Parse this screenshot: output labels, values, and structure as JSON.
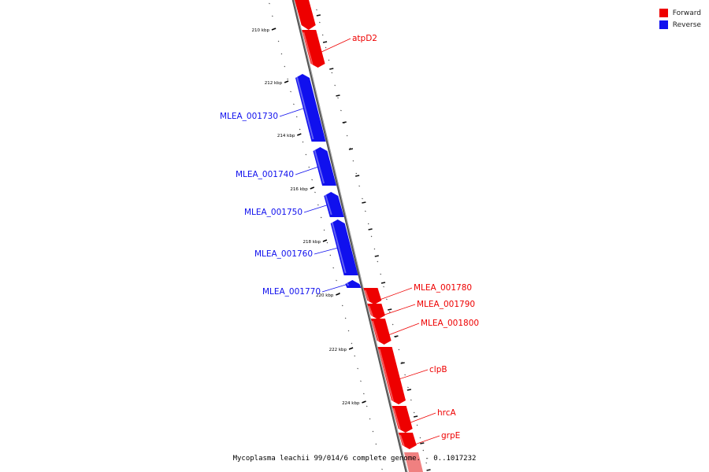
{
  "colors": {
    "forward": "#ee0000",
    "reverse": "#1010ee",
    "forward_light": "#f08080",
    "backbone": "#888888"
  },
  "legend": [
    {
      "label": "Forward",
      "color": "#ee0000"
    },
    {
      "label": "Reverse",
      "color": "#1010ee"
    }
  ],
  "caption": "Mycoplasma leachii 99/014/6 complete genome. - 0..1017232",
  "ruler_labels": [
    "210 kbp",
    "212 kbp",
    "214 kbp",
    "216 kbp",
    "218 kbp",
    "220 kbp",
    "222 kbp",
    "224 kbp"
  ],
  "genes": [
    {
      "label": "atpD2",
      "strand": "forward"
    },
    {
      "label": "MLEA_001730",
      "strand": "reverse"
    },
    {
      "label": "MLEA_001740",
      "strand": "reverse"
    },
    {
      "label": "MLEA_001750",
      "strand": "reverse"
    },
    {
      "label": "MLEA_001760",
      "strand": "reverse"
    },
    {
      "label": "MLEA_001770",
      "strand": "reverse"
    },
    {
      "label": "MLEA_001780",
      "strand": "forward"
    },
    {
      "label": "MLEA_001790",
      "strand": "forward"
    },
    {
      "label": "MLEA_001800",
      "strand": "forward"
    },
    {
      "label": "clpB",
      "strand": "forward"
    },
    {
      "label": "hrcA",
      "strand": "forward"
    },
    {
      "label": "grpE",
      "strand": "forward"
    }
  ]
}
